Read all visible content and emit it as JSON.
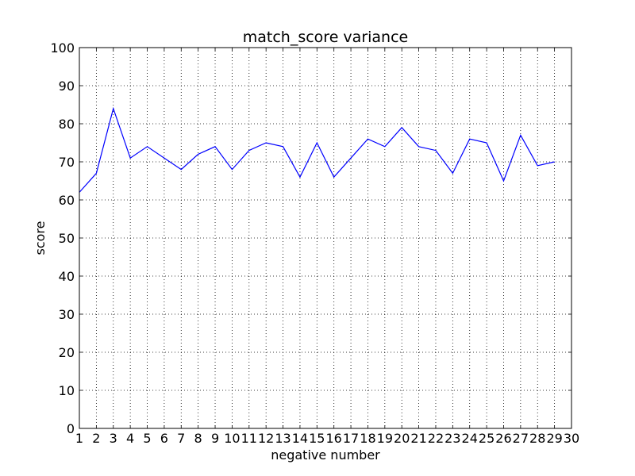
{
  "chart_data": {
    "type": "line",
    "title": "match_score variance",
    "xlabel": "negative number",
    "ylabel": "score",
    "xlim": [
      1,
      30
    ],
    "ylim": [
      0,
      100
    ],
    "xticks": [
      1,
      2,
      3,
      4,
      5,
      6,
      7,
      8,
      9,
      10,
      11,
      12,
      13,
      14,
      15,
      16,
      17,
      18,
      19,
      20,
      21,
      22,
      23,
      24,
      25,
      26,
      27,
      28,
      29,
      30
    ],
    "yticks": [
      0,
      10,
      20,
      30,
      40,
      50,
      60,
      70,
      80,
      90,
      100
    ],
    "grid": true,
    "series_color": "#0000ff",
    "x": [
      1,
      2,
      3,
      4,
      5,
      6,
      7,
      8,
      9,
      10,
      11,
      12,
      13,
      14,
      15,
      16,
      17,
      18,
      19,
      20,
      21,
      22,
      23,
      24,
      25,
      26,
      27,
      28,
      29
    ],
    "y": [
      62,
      67,
      84,
      71,
      74,
      71,
      68,
      72,
      74,
      68,
      73,
      75,
      74,
      66,
      75,
      66,
      71,
      76,
      74,
      79,
      74,
      73,
      67,
      76,
      75,
      65,
      77,
      69,
      70
    ]
  }
}
